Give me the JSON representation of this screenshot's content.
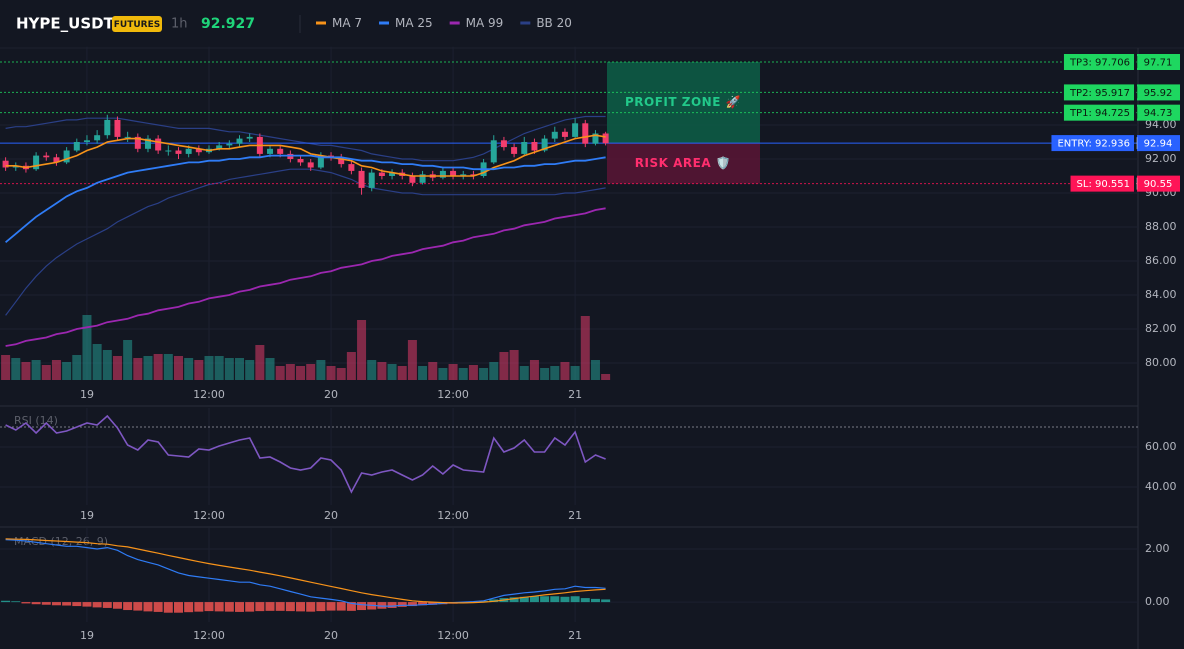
{
  "chart_data": {
    "type": "candlestick",
    "title": "HYPE_USDT",
    "badge": "FUTURES",
    "interval": "1h",
    "last_price": 92.927,
    "up_color": "#26a69a",
    "down_color": "#f23d6d",
    "header_price_color": "#1fd47a",
    "categories": [
      null,
      null,
      null,
      null,
      null,
      null,
      null,
      null,
      "19",
      null,
      null,
      null,
      null,
      null,
      null,
      null,
      null,
      null,
      null,
      null,
      "12:00",
      null,
      null,
      null,
      null,
      null,
      null,
      null,
      null,
      null,
      null,
      null,
      "20",
      null,
      null,
      null,
      null,
      null,
      null,
      null,
      null,
      null,
      null,
      null,
      "12:00",
      null,
      null,
      null,
      null,
      null,
      null,
      null,
      null,
      null,
      null,
      null,
      "21",
      null,
      null,
      null
    ],
    "open": [
      91.9,
      91.5,
      91.6,
      91.4,
      92.2,
      92.1,
      91.8,
      92.5,
      93.0,
      93.1,
      93.4,
      94.3,
      93.3,
      93.3,
      92.6,
      93.2,
      92.5,
      92.5,
      92.3,
      92.6,
      92.4,
      92.6,
      92.8,
      92.9,
      93.2,
      93.3,
      92.3,
      92.6,
      92.3,
      92.0,
      91.8,
      91.5,
      92.2,
      92.1,
      91.7,
      91.3,
      90.3,
      91.2,
      91.0,
      91.2,
      91.0,
      90.6,
      91.1,
      90.9,
      91.3,
      91.0,
      91.1,
      91.0,
      91.8,
      93.1,
      92.7,
      92.3,
      93.0,
      92.5,
      93.2,
      93.6,
      93.3,
      94.1,
      92.9,
      93.5
    ],
    "high": [
      92.1,
      91.8,
      91.8,
      92.4,
      92.4,
      92.3,
      92.7,
      93.2,
      93.4,
      93.7,
      94.6,
      94.5,
      93.6,
      93.5,
      93.4,
      93.4,
      92.8,
      92.7,
      92.8,
      92.8,
      92.8,
      93.0,
      93.1,
      93.4,
      93.5,
      93.5,
      92.8,
      92.8,
      92.5,
      92.2,
      92.0,
      92.4,
      92.4,
      92.3,
      91.9,
      91.5,
      91.4,
      91.4,
      91.4,
      91.4,
      91.2,
      91.3,
      91.3,
      91.5,
      91.5,
      91.3,
      91.3,
      92.0,
      93.4,
      93.3,
      92.9,
      93.3,
      93.2,
      93.4,
      93.9,
      93.8,
      94.4,
      94.3,
      93.7,
      93.6
    ],
    "low": [
      91.3,
      91.3,
      91.2,
      91.3,
      91.9,
      91.6,
      91.7,
      92.4,
      92.8,
      92.9,
      93.2,
      93.1,
      93.0,
      92.4,
      92.4,
      92.3,
      92.2,
      92.0,
      92.1,
      92.2,
      92.3,
      92.5,
      92.6,
      92.7,
      93.0,
      92.1,
      92.1,
      92.1,
      91.8,
      91.6,
      91.3,
      91.4,
      91.9,
      91.5,
      91.1,
      89.9,
      90.1,
      90.8,
      90.8,
      90.8,
      90.4,
      90.5,
      90.7,
      90.8,
      90.8,
      90.8,
      90.8,
      90.9,
      91.7,
      92.5,
      92.1,
      92.2,
      92.3,
      92.4,
      93.0,
      93.1,
      93.2,
      92.7,
      92.8,
      92.8
    ],
    "close": [
      91.5,
      91.6,
      91.4,
      92.2,
      92.1,
      91.8,
      92.5,
      93.0,
      93.1,
      93.4,
      94.3,
      93.3,
      93.3,
      92.6,
      93.2,
      92.5,
      92.5,
      92.3,
      92.6,
      92.4,
      92.6,
      92.8,
      92.9,
      93.2,
      93.3,
      92.3,
      92.6,
      92.3,
      92.0,
      91.8,
      91.5,
      92.2,
      92.1,
      91.7,
      91.3,
      90.3,
      91.2,
      91.0,
      91.2,
      91.0,
      90.6,
      91.1,
      90.9,
      91.3,
      91.0,
      91.1,
      91.0,
      91.8,
      93.1,
      92.7,
      92.3,
      93.0,
      92.5,
      93.2,
      93.6,
      93.3,
      94.1,
      92.9,
      93.5,
      92.927
    ],
    "volume": [
      25,
      22,
      18,
      20,
      15,
      20,
      18,
      25,
      65,
      36,
      30,
      24,
      40,
      22,
      24,
      26,
      26,
      24,
      22,
      20,
      24,
      24,
      22,
      22,
      20,
      35,
      22,
      14,
      16,
      14,
      16,
      20,
      14,
      12,
      28,
      60,
      20,
      18,
      16,
      14,
      40,
      14,
      18,
      12,
      16,
      12,
      15,
      12,
      18,
      28,
      30,
      14,
      20,
      12,
      14,
      18,
      14,
      64,
      20,
      6
    ],
    "series": [
      {
        "name": "MA 7",
        "color": "#f7931a",
        "values": [
          91.6,
          91.6,
          91.5,
          91.6,
          91.7,
          91.8,
          92.0,
          92.2,
          92.5,
          92.7,
          93.0,
          93.1,
          93.2,
          93.2,
          93.1,
          93.0,
          92.9,
          92.8,
          92.7,
          92.6,
          92.5,
          92.6,
          92.6,
          92.7,
          92.8,
          92.8,
          92.8,
          92.8,
          92.7,
          92.6,
          92.3,
          92.2,
          92.1,
          92.0,
          91.9,
          91.6,
          91.5,
          91.3,
          91.2,
          91.1,
          91.0,
          91.0,
          91.0,
          91.0,
          91.0,
          91.0,
          91.0,
          91.2,
          91.5,
          91.7,
          91.9,
          92.2,
          92.4,
          92.6,
          92.8,
          93.0,
          93.2,
          93.3,
          93.4,
          93.3
        ]
      },
      {
        "name": "MA 25",
        "color": "#2f7cf6",
        "values": [
          87.1,
          87.6,
          88.1,
          88.6,
          89.0,
          89.4,
          89.8,
          90.1,
          90.3,
          90.6,
          90.8,
          91.0,
          91.2,
          91.3,
          91.4,
          91.5,
          91.6,
          91.7,
          91.8,
          91.8,
          91.9,
          91.9,
          92.0,
          92.0,
          92.1,
          92.1,
          92.2,
          92.2,
          92.2,
          92.2,
          92.2,
          92.1,
          92.1,
          92.1,
          92.0,
          91.9,
          91.9,
          91.8,
          91.8,
          91.7,
          91.7,
          91.6,
          91.6,
          91.5,
          91.5,
          91.5,
          91.4,
          91.4,
          91.4,
          91.5,
          91.5,
          91.6,
          91.6,
          91.7,
          91.7,
          91.8,
          91.9,
          91.9,
          92.0,
          92.1
        ]
      },
      {
        "name": "MA 99",
        "color": "#9c27b0",
        "values": [
          81.0,
          81.1,
          81.3,
          81.4,
          81.5,
          81.7,
          81.8,
          82.0,
          82.1,
          82.2,
          82.4,
          82.5,
          82.6,
          82.8,
          82.9,
          83.1,
          83.2,
          83.3,
          83.5,
          83.6,
          83.8,
          83.9,
          84.0,
          84.2,
          84.3,
          84.5,
          84.6,
          84.7,
          84.9,
          85.0,
          85.1,
          85.3,
          85.4,
          85.6,
          85.7,
          85.8,
          86.0,
          86.1,
          86.3,
          86.4,
          86.5,
          86.7,
          86.8,
          86.9,
          87.1,
          87.2,
          87.4,
          87.5,
          87.6,
          87.8,
          87.9,
          88.1,
          88.2,
          88.3,
          88.5,
          88.6,
          88.7,
          88.8,
          89.0,
          89.1
        ]
      }
    ],
    "bands": {
      "name": "BB 20",
      "color": "#2a3f86",
      "upper": [
        93.8,
        93.9,
        93.9,
        94.0,
        94.1,
        94.2,
        94.3,
        94.3,
        94.4,
        94.4,
        94.4,
        94.4,
        94.3,
        94.2,
        94.1,
        94.0,
        93.9,
        93.8,
        93.8,
        93.8,
        93.8,
        93.7,
        93.6,
        93.6,
        93.5,
        93.4,
        93.3,
        93.2,
        93.1,
        93.0,
        92.9,
        92.8,
        92.8,
        92.7,
        92.6,
        92.5,
        92.3,
        92.2,
        92.1,
        92.0,
        92.0,
        91.9,
        91.9,
        91.9,
        91.9,
        92.0,
        92.1,
        92.3,
        92.6,
        92.9,
        93.2,
        93.5,
        93.7,
        93.9,
        94.1,
        94.3,
        94.4,
        94.5,
        94.5,
        94.5
      ],
      "lower": [
        82.8,
        83.6,
        84.4,
        85.1,
        85.7,
        86.2,
        86.6,
        87.0,
        87.3,
        87.6,
        87.9,
        88.3,
        88.6,
        88.9,
        89.2,
        89.4,
        89.7,
        89.9,
        90.1,
        90.3,
        90.5,
        90.6,
        90.8,
        90.9,
        91.0,
        91.1,
        91.2,
        91.3,
        91.4,
        91.4,
        91.4,
        91.3,
        91.2,
        91.0,
        90.8,
        90.5,
        90.3,
        90.2,
        90.1,
        90.0,
        90.0,
        89.9,
        89.9,
        89.9,
        89.9,
        89.9,
        89.9,
        89.9,
        89.9,
        89.9,
        89.9,
        89.9,
        89.9,
        89.9,
        89.9,
        90.0,
        90.0,
        90.1,
        90.2,
        90.3
      ]
    },
    "ylim": [
      79,
      98.6
    ],
    "yticks": [
      {
        "value": 80,
        "label": "80.00"
      },
      {
        "value": 82,
        "label": "82.00"
      },
      {
        "value": 84,
        "label": "84.00"
      },
      {
        "value": 86,
        "label": "86.00"
      },
      {
        "value": 88,
        "label": "88.00"
      },
      {
        "value": 90,
        "label": "90.00"
      },
      {
        "value": 92,
        "label": "92.00"
      },
      {
        "value": 94,
        "label": "94.00"
      }
    ],
    "levels": [
      {
        "label": "TP3: 97.706",
        "value": 97.706,
        "axis_label": "97.71",
        "color": "#1ed760",
        "text_color": "#0b1a10",
        "style": "dotted"
      },
      {
        "label": "TP2: 95.917",
        "value": 95.917,
        "axis_label": "95.92",
        "color": "#1ed760",
        "text_color": "#0b1a10",
        "style": "dotted"
      },
      {
        "label": "TP1: 94.725",
        "value": 94.725,
        "axis_label": "94.73",
        "color": "#1ed760",
        "text_color": "#0b1a10",
        "style": "dotted"
      },
      {
        "label": "ENTRY: 92.936",
        "value": 92.936,
        "axis_label": "92.94",
        "color": "#2962ff",
        "text_color": "#ffffff",
        "style": "solid"
      },
      {
        "label": "SL: 90.551",
        "value": 90.551,
        "axis_label": "90.55",
        "color": "#ff1457",
        "text_color": "#ffffff",
        "style": "dotted"
      }
    ],
    "zones": [
      {
        "label": "PROFIT ZONE 🚀",
        "ylim": [
          92.936,
          97.706
        ],
        "color": "#0d5f47",
        "text_color": "#22c98a"
      },
      {
        "label": "RISK AREA 🛡️",
        "ylim": [
          90.551,
          92.936
        ],
        "color": "#5a1535",
        "text_color": "#ff2e6e"
      }
    ],
    "rsi": {
      "title": "RSI (14)",
      "color": "#7e57c2",
      "overbought": 70,
      "values": [
        71,
        68.5,
        72,
        67,
        72,
        67,
        68,
        70,
        72,
        71,
        75.5,
        69.5,
        61,
        58.5,
        63.5,
        62.5,
        56,
        55.5,
        55,
        59,
        58.5,
        60.5,
        62,
        63.5,
        64.5,
        54.5,
        55,
        52.5,
        49.5,
        48.5,
        49.5,
        54.5,
        53.5,
        48.5,
        37.5,
        47,
        46,
        47.5,
        48.5,
        46,
        43.5,
        46,
        50.5,
        46.5,
        51,
        48.5,
        48,
        47.5,
        64.5,
        57.5,
        59.5,
        63.5,
        57.5,
        57.5,
        64.5,
        61,
        67.5,
        52.5,
        56,
        54
      ],
      "ylim": [
        31,
        79.5
      ],
      "yticks": [
        {
          "value": 40,
          "label": "40.00"
        },
        {
          "value": 60,
          "label": "60.00"
        }
      ]
    },
    "macd": {
      "title": "MACD (12, 26, 9)",
      "line_color": "#2f7cf6",
      "signal_color": "#f7931a",
      "up_color": "#26a69a",
      "down_color": "#ef5350",
      "macd_line": [
        2.35,
        2.33,
        2.3,
        2.25,
        2.2,
        2.15,
        2.1,
        2.1,
        2.05,
        2.0,
        2.05,
        1.95,
        1.75,
        1.6,
        1.5,
        1.4,
        1.25,
        1.1,
        1.0,
        0.95,
        0.9,
        0.85,
        0.8,
        0.75,
        0.75,
        0.65,
        0.6,
        0.5,
        0.4,
        0.3,
        0.2,
        0.15,
        0.1,
        0.05,
        -0.05,
        -0.1,
        -0.12,
        -0.15,
        -0.15,
        -0.12,
        -0.12,
        -0.1,
        -0.08,
        -0.05,
        -0.02,
        0.0,
        0.02,
        0.05,
        0.15,
        0.25,
        0.3,
        0.35,
        0.38,
        0.42,
        0.48,
        0.5,
        0.6,
        0.55,
        0.55,
        0.52
      ],
      "signal_line": [
        2.38,
        2.37,
        2.36,
        2.34,
        2.32,
        2.3,
        2.28,
        2.26,
        2.24,
        2.2,
        2.18,
        2.12,
        2.08,
        2.0,
        1.92,
        1.84,
        1.76,
        1.68,
        1.6,
        1.52,
        1.45,
        1.38,
        1.32,
        1.26,
        1.2,
        1.13,
        1.06,
        0.99,
        0.91,
        0.83,
        0.75,
        0.67,
        0.59,
        0.51,
        0.43,
        0.35,
        0.28,
        0.22,
        0.16,
        0.1,
        0.05,
        0.02,
        0.0,
        -0.02,
        -0.03,
        -0.03,
        -0.02,
        0.0,
        0.03,
        0.08,
        0.13,
        0.18,
        0.22,
        0.27,
        0.31,
        0.35,
        0.4,
        0.43,
        0.46,
        0.48
      ],
      "histogram": [
        0.05,
        0.03,
        -0.05,
        -0.08,
        -0.1,
        -0.12,
        -0.13,
        -0.15,
        -0.17,
        -0.2,
        -0.22,
        -0.25,
        -0.3,
        -0.32,
        -0.35,
        -0.37,
        -0.4,
        -0.4,
        -0.38,
        -0.36,
        -0.34,
        -0.35,
        -0.36,
        -0.37,
        -0.36,
        -0.34,
        -0.33,
        -0.33,
        -0.34,
        -0.35,
        -0.36,
        -0.34,
        -0.32,
        -0.32,
        -0.33,
        -0.3,
        -0.28,
        -0.25,
        -0.22,
        -0.18,
        -0.15,
        -0.12,
        -0.1,
        -0.08,
        -0.06,
        -0.04,
        -0.02,
        0.04,
        0.1,
        0.15,
        0.18,
        0.2,
        0.22,
        0.22,
        0.22,
        0.2,
        0.22,
        0.15,
        0.12,
        0.1
      ],
      "ylim": [
        -0.75,
        2.79
      ],
      "yticks": [
        {
          "value": 0,
          "label": "0.00"
        },
        {
          "value": 2,
          "label": "2.00"
        }
      ]
    }
  }
}
